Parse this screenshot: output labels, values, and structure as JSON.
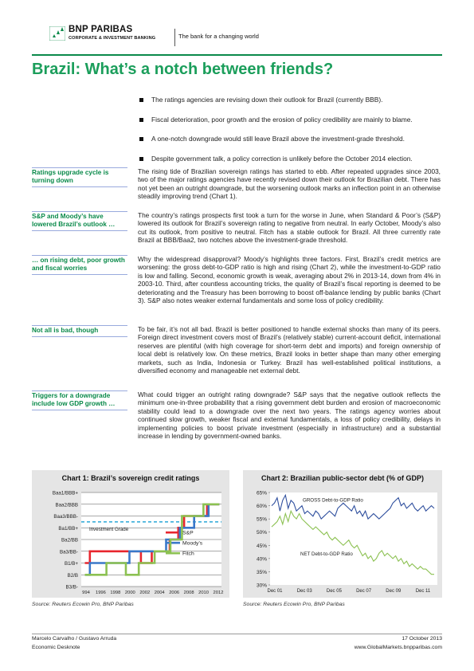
{
  "header": {
    "brand": "BNP PARIBAS",
    "brand_sub": "CORPORATE & INVESTMENT BANKING",
    "tagline": "The bank for a changing world",
    "logo_icon": "bnp-stars-icon"
  },
  "title": "Brazil: What’s a notch between friends?",
  "bullets": [
    "The ratings agencies are revising down their outlook for Brazil (currently BBB).",
    "Fiscal deterioration, poor growth and the erosion of policy credibility are mainly to blame.",
    "A one-notch downgrade would still leave Brazil above the investment-grade threshold.",
    "Despite government talk, a policy correction is unlikely before the October 2014 election."
  ],
  "sections": [
    {
      "side": "Ratings upgrade cycle is turning down",
      "text": "The rising tide of Brazilian sovereign ratings has started to ebb. After repeated upgrades since 2003, two of the major ratings agencies have recently revised down their outlook for Brazilian debt. There has not yet been an outright downgrade, but the worsening outlook marks an inflection point in an otherwise steadily improving trend (Chart 1)."
    },
    {
      "side": "S&P and Moody’s have lowered Brazil’s outlook …",
      "text": "The country’s ratings prospects first took a turn for the worse in June, when Standard & Poor’s (S&P) lowered its outlook for Brazil’s sovereign rating to negative from neutral. In early October, Moody’s also cut its outlook, from positive to neutral. Fitch has a stable outlook for Brazil. All three currently rate Brazil at BBB/Baa2, two notches above the investment-grade threshold."
    },
    {
      "side": "… on rising debt, poor growth and fiscal worries",
      "text": "Why the widespread disapproval? Moody’s highlights three factors. First, Brazil’s credit metrics are worsening: the gross debt-to-GDP ratio is high and rising (Chart 2), while the investment-to-GDP ratio is low and falling. Second, economic growth is weak, averaging about 2% in 2013-14, down from 4% in 2003-10. Third, after countless accounting tricks, the quality of Brazil’s fiscal reporting is deemed to be deteriorating and the Treasury has been borrowing to boost off-balance lending by public banks (Chart 3). S&P also notes weaker external fundamentals and some loss of policy credibility."
    },
    {
      "side": "Not all is bad, though",
      "text": "To be fair, it’s not all bad. Brazil is better positioned to handle external shocks than many of its peers. Foreign direct investment covers most of Brazil’s (relatively stable) current-account deficit, international reserves are plentiful (with high coverage for short-term debt and imports) and foreign ownership of local debt is relatively low. On these metrics, Brazil looks in better shape than many other emerging markets, such as India, Indonesia or Turkey. Brazil has well-established political institutions, a diversified economy and manageable net external debt."
    },
    {
      "side": "Triggers for a downgrade include low GDP growth …",
      "text": "What could trigger an outright rating downgrade? S&P says that the negative outlook reflects the minimum one-in-three probability that a rising government debt burden and erosion of macroeconomic stability could lead to a downgrade over the next two years. The ratings agency worries about continued slow growth, weaker fiscal and external fundamentals, a loss of policy credibility, delays in implementing policies to boost private investment (especially in infrastructure) and a substantial increase in lending by government-owned banks."
    }
  ],
  "charts": {
    "chart1_title": "Chart 1: Brazil’s sovereign credit ratings",
    "chart2_title": "Chart 2: Brazilian public-sector debt (% of GDP)",
    "source1": "Source: Reuters Ecowin Pro, BNP Paribas",
    "source2": "Source: Reuters Ecowin Pro, BNP Paribas",
    "colors": {
      "sp": "#e8262e",
      "moodys": "#3a78c9",
      "fitch": "#8cc152",
      "gross": "#2f4f9e",
      "net": "#8cc152",
      "ig": "#29a8d8"
    }
  },
  "chart_data": [
    {
      "type": "line",
      "title": "Chart 1: Brazil’s sovereign credit ratings",
      "y_categories": [
        "B3/B-",
        "B2/B",
        "B1/B+",
        "Ba3/BB-",
        "Ba2/BB",
        "Ba1/BB+",
        "Baa3/BBB-",
        "Baa2/BBB",
        "Baa1/BBB+"
      ],
      "x_ticks": [
        "994",
        "1996",
        "1998",
        "2000",
        "2002",
        "2004",
        "2006",
        "2008",
        "2010",
        "2012"
      ],
      "xlim": [
        1994,
        2013.5
      ],
      "annotation": "Investment  Grade",
      "threshold_level": 5.5,
      "series": [
        {
          "name": "S&P",
          "points": [
            [
              1994.5,
              2
            ],
            [
              1995.2,
              2
            ],
            [
              1995.2,
              3
            ],
            [
              2002.3,
              3
            ],
            [
              2002.3,
              2
            ],
            [
              2003.8,
              2
            ],
            [
              2003.8,
              3
            ],
            [
              2006.3,
              3
            ],
            [
              2006.3,
              4
            ],
            [
              2007.5,
              4
            ],
            [
              2007.5,
              5
            ],
            [
              2008.3,
              5
            ],
            [
              2008.3,
              6
            ],
            [
              2011.5,
              6
            ],
            [
              2011.5,
              7
            ],
            [
              2013.2,
              7
            ]
          ]
        },
        {
          "name": "Moody’s",
          "points": [
            [
              1994.5,
              1
            ],
            [
              1995.2,
              1
            ],
            [
              1995.2,
              2
            ],
            [
              2000.7,
              2
            ],
            [
              2000.7,
              3
            ],
            [
              2005.8,
              3
            ],
            [
              2005.8,
              4
            ],
            [
              2007.7,
              4
            ],
            [
              2007.7,
              5
            ],
            [
              2009.7,
              5
            ],
            [
              2009.7,
              6
            ],
            [
              2011.7,
              6
            ],
            [
              2011.7,
              7
            ],
            [
              2013.2,
              7
            ]
          ]
        },
        {
          "name": "Fitch",
          "points": [
            [
              1994.5,
              1
            ],
            [
              1997.5,
              1
            ],
            [
              1997.5,
              2
            ],
            [
              2000.2,
              2
            ],
            [
              2000.2,
              1
            ],
            [
              2002.0,
              1
            ],
            [
              2002.0,
              2
            ],
            [
              2004.2,
              2
            ],
            [
              2004.2,
              3
            ],
            [
              2006.4,
              3
            ],
            [
              2006.4,
              4
            ],
            [
              2008.0,
              4
            ],
            [
              2008.0,
              6
            ],
            [
              2011.0,
              6
            ],
            [
              2011.0,
              7
            ],
            [
              2013.2,
              7
            ]
          ]
        }
      ]
    },
    {
      "type": "line",
      "title": "Chart 2: Brazilian public-sector debt (% of GDP)",
      "x_ticks": [
        "Dec 01",
        "Dec 03",
        "Dec 05",
        "Dec 07",
        "Dec 09",
        "Dec 11"
      ],
      "ylim": [
        30,
        65
      ],
      "y_ticks": [
        "30%",
        "35%",
        "40%",
        "45%",
        "50%",
        "55%",
        "60%",
        "65%"
      ],
      "series": [
        {
          "name": "GROSS Debt-to-GDP Ratio",
          "values": [
            60,
            61,
            63,
            58,
            62,
            64,
            59,
            62,
            61,
            58,
            59,
            60,
            57,
            58,
            57,
            56,
            58,
            57,
            55,
            56,
            57,
            58,
            57,
            56,
            59,
            60,
            61,
            60,
            59,
            58,
            60,
            57,
            58,
            56,
            58,
            55,
            56,
            57,
            56,
            55,
            56,
            57,
            58,
            59,
            61,
            62,
            63,
            60,
            61,
            59,
            60,
            61,
            59,
            58,
            59,
            60,
            58,
            59,
            60,
            59
          ]
        },
        {
          "name": "NET Debt-to-GDP Ratio",
          "values": [
            52,
            53,
            54,
            56,
            53,
            57,
            54,
            58,
            56,
            55,
            57,
            55,
            54,
            53,
            52,
            51,
            52,
            51,
            50,
            49,
            50,
            48,
            47,
            48,
            47,
            46,
            45,
            46,
            47,
            45,
            44,
            45,
            43,
            41,
            42,
            40,
            41,
            39,
            40,
            42,
            43,
            41,
            42,
            41,
            40,
            41,
            39,
            40,
            38,
            39,
            37,
            38,
            37,
            36,
            37,
            36,
            36,
            35,
            34,
            34
          ]
        }
      ]
    }
  ],
  "footer": {
    "authors": "Marcelo Carvalho / Gustavo Arruda",
    "date": "17 October 2013",
    "company": "Economic Desknote",
    "url": "www.GlobalMarkets.bnpparibas.com"
  }
}
